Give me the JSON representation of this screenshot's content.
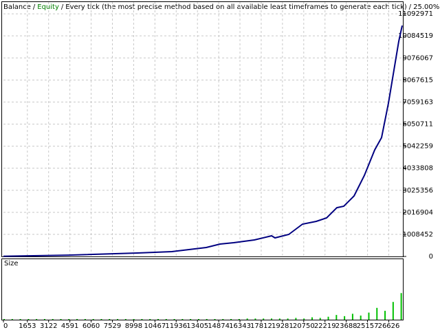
{
  "chart_data": {
    "type": "line",
    "header": [
      {
        "text": "Balance",
        "color": "#000000"
      },
      {
        "text": "Equity",
        "color": "#008000"
      },
      {
        "text": "Every tick (the most precise method based on all available least timeframes to generate each tick)",
        "color": "#000000"
      },
      {
        "text": "25.00%",
        "color": "#000000"
      }
    ],
    "separator": "/",
    "x": [
      0,
      4513,
      9263,
      11638,
      14014,
      14964,
      15914,
      17339,
      18527,
      18765,
      19714,
      20665,
      21615,
      22327,
      23040,
      23515,
      24228,
      24940,
      25653,
      26128,
      26603,
      27078,
      27316,
      27553
    ],
    "series": [
      {
        "color": "#000080",
        "values": [
          10000,
          60000,
          157000,
          220000,
          408000,
          565000,
          628000,
          754000,
          942000,
          848000,
          1005000,
          1476000,
          1602000,
          1759000,
          2230000,
          2293000,
          2765000,
          3707000,
          4870000,
          5435000,
          7006000,
          8891000,
          9833000,
          10556000
        ]
      }
    ],
    "xlim": [
      0,
      27600
    ],
    "ylim": [
      0,
      11630000
    ],
    "yticks": [
      0,
      1008452,
      2016904,
      3025356,
      4033808,
      5042259,
      6050711,
      7059163,
      8067615,
      9076067,
      10084519,
      11092971
    ],
    "xticks": [
      0,
      1653,
      3122,
      4591,
      6060,
      7529,
      8998,
      10467,
      11936,
      13405,
      14874,
      16343,
      17812,
      19281,
      20750,
      22219,
      23688,
      25157,
      26626
    ],
    "grid": true,
    "size_panel": {
      "type": "bar",
      "label": "Size",
      "color": "#00c000",
      "x": [
        0,
        560,
        1120,
        1680,
        2240,
        2800,
        3360,
        3920,
        4480,
        5040,
        5600,
        6160,
        6720,
        7280,
        7840,
        8400,
        8960,
        9520,
        10080,
        10640,
        11200,
        11760,
        12320,
        12880,
        13440,
        14000,
        14560,
        15120,
        15680,
        16240,
        16800,
        17360,
        17920,
        18480,
        19040,
        19600,
        20160,
        20720,
        21280,
        21840,
        22400,
        22960,
        23520,
        24080,
        24640,
        25200,
        25760,
        26320,
        26880,
        27440
      ],
      "values": [
        0.5,
        0.5,
        0.5,
        0.5,
        0.5,
        0.5,
        0.5,
        0.5,
        0.5,
        0.5,
        0.5,
        0.5,
        0.5,
        0.5,
        0.5,
        0.5,
        0.5,
        0.5,
        0.5,
        0.5,
        1,
        1,
        1,
        1,
        1,
        1,
        1,
        1,
        1,
        1,
        2,
        2,
        2,
        2,
        2,
        2,
        3,
        2,
        4,
        3,
        5,
        8,
        6,
        10,
        7,
        12,
        20,
        15,
        30,
        45
      ],
      "ylim": [
        0,
        100
      ]
    }
  }
}
